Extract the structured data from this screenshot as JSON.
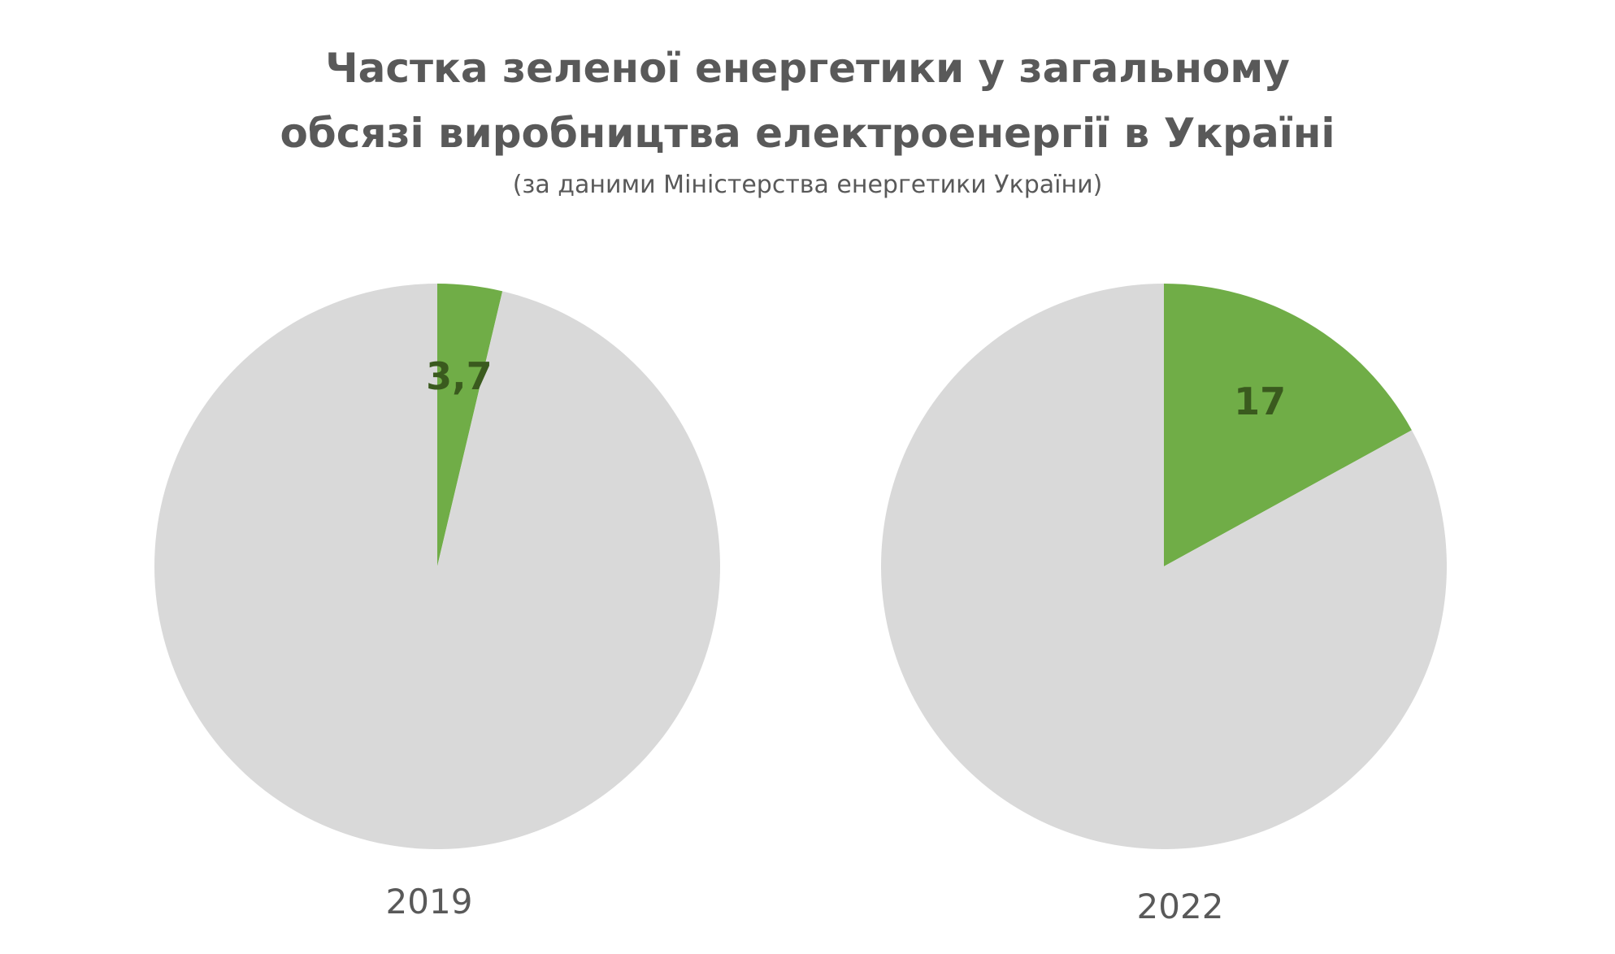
{
  "header": {
    "title_line1": "Частка зеленої енергетики у загальному",
    "title_line2": "обсязі виробництва електроенергії в Україні",
    "subtitle": "(за даними Міністерства енергетики України)"
  },
  "colors": {
    "green_share": "#70AD47",
    "remainder": "#D9D9D9",
    "label_text": "#3A5A1E",
    "title_text": "#595959"
  },
  "chart_data": [
    {
      "type": "pie",
      "title": "",
      "category_label": "2019",
      "slices": [
        {
          "name": "",
          "value": 3.7,
          "label": "3,7"
        },
        {
          "name": "",
          "value": 96.3,
          "label": ""
        }
      ]
    },
    {
      "type": "pie",
      "title": "",
      "category_label": "2022",
      "slices": [
        {
          "name": "",
          "value": 17,
          "label": "17"
        },
        {
          "name": "",
          "value": 83,
          "label": ""
        }
      ]
    }
  ]
}
